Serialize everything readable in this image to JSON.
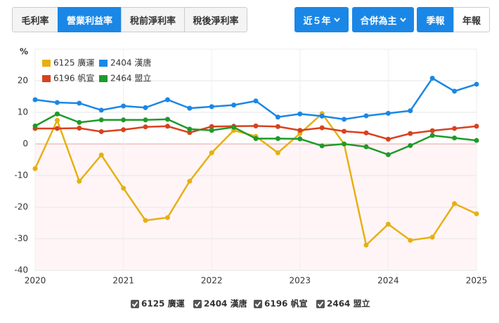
{
  "controls": {
    "tabs": [
      "毛利率",
      "營業利益率",
      "稅前淨利率",
      "稅後淨利率"
    ],
    "period": "近５年",
    "scope": "合併為主",
    "freq": [
      "季報",
      "年報"
    ]
  },
  "chart_data": {
    "type": "line",
    "y_unit": "%",
    "x": [
      2020,
      2020.25,
      2020.5,
      2020.75,
      2021,
      2021.25,
      2021.5,
      2021.75,
      2022,
      2022.25,
      2022.5,
      2022.75,
      2023,
      2023.25,
      2023.5,
      2023.75,
      2024,
      2024.25,
      2024.5,
      2024.75,
      2025
    ],
    "xlim": [
      2020,
      2025
    ],
    "xticks": [
      2020,
      2021,
      2022,
      2023,
      2024,
      2025
    ],
    "ylim": [
      -40,
      30
    ],
    "yticks": [
      -40,
      -30,
      -20,
      -10,
      0,
      10,
      20
    ],
    "grid": true,
    "series": [
      {
        "name": "6125 廣運",
        "color": "#e6b012",
        "values": [
          -7.8,
          7.5,
          -11.8,
          -3.5,
          -14,
          -24.2,
          -23.3,
          -11.8,
          -2.8,
          4.3,
          2.4,
          -2.8,
          3.3,
          9.6,
          0,
          -32,
          -25.4,
          -30.5,
          -29.5,
          -18.9,
          -22.1
        ]
      },
      {
        "name": "2404 漢唐",
        "color": "#1a87e6",
        "values": [
          14,
          13.1,
          12.9,
          10.7,
          12,
          11.5,
          14,
          11.3,
          11.8,
          12.3,
          13.6,
          8.5,
          9.5,
          8.8,
          7.8,
          8.9,
          9.7,
          10.5,
          20.8,
          16.7,
          18.9
        ]
      },
      {
        "name": "6196 帆宣",
        "color": "#d9411e",
        "values": [
          4.9,
          4.9,
          5,
          3.9,
          4.5,
          5.4,
          5.6,
          3.6,
          5.5,
          5.6,
          5.7,
          5.5,
          4.3,
          5.1,
          4,
          3.5,
          1.5,
          3.3,
          4.2,
          4.9,
          5.6
        ]
      },
      {
        "name": "2464 盟立",
        "color": "#1f9a2a",
        "values": [
          5.7,
          9.5,
          6.8,
          7.6,
          7.6,
          7.6,
          7.8,
          4.7,
          4.3,
          5.3,
          1.7,
          1.7,
          1.6,
          -0.6,
          0,
          -0.9,
          -3.4,
          -0.5,
          2.7,
          1.9,
          1.1
        ]
      }
    ]
  }
}
